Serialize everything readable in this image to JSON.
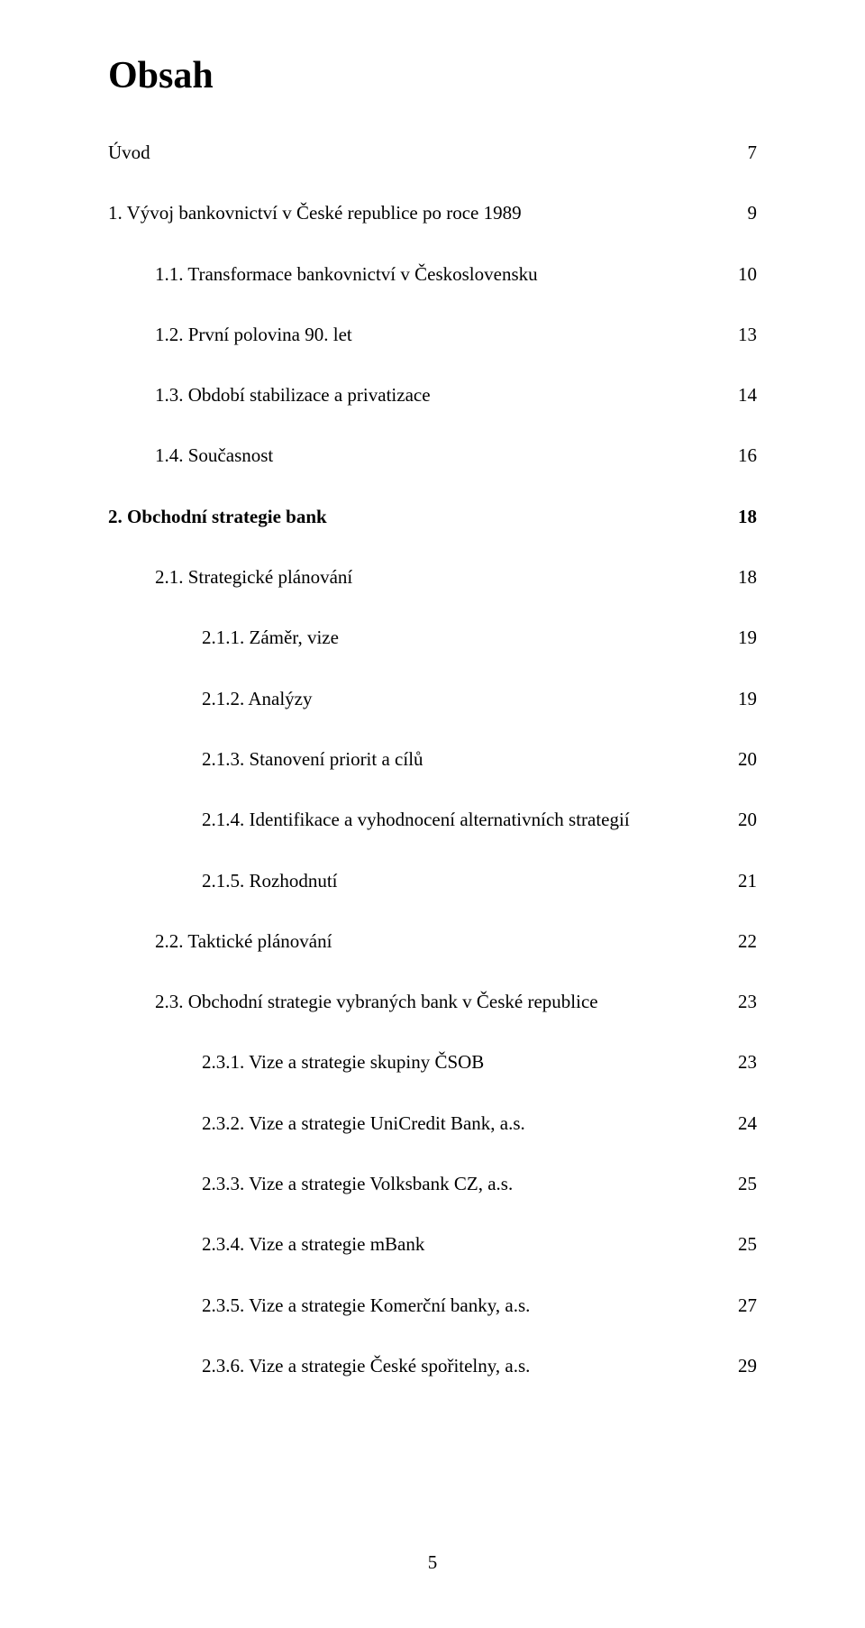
{
  "title": "Obsah",
  "page_number": "5",
  "entries": [
    {
      "lvl": 0,
      "bold": false,
      "label": "Úvod",
      "page": "7"
    },
    {
      "lvl": 0,
      "bold": false,
      "label": "1. Vývoj bankovnictví v České republice po roce 1989",
      "page": "9"
    },
    {
      "lvl": 1,
      "bold": false,
      "label": "1.1.   Transformace bankovnictví v Československu",
      "page": "10"
    },
    {
      "lvl": 1,
      "bold": false,
      "label": "1.2.   První polovina 90. let",
      "page": "13"
    },
    {
      "lvl": 1,
      "bold": false,
      "label": "1.3.   Období stabilizace a privatizace",
      "page": "14"
    },
    {
      "lvl": 1,
      "bold": false,
      "label": "1.4.   Současnost",
      "page": "16"
    },
    {
      "lvl": 0,
      "bold": true,
      "label": "2. Obchodní strategie bank",
      "page": "18"
    },
    {
      "lvl": 1,
      "bold": false,
      "label": "2.1.   Strategické plánování",
      "page": "18"
    },
    {
      "lvl": 2,
      "bold": false,
      "label": "2.1.1.    Záměr, vize",
      "page": "19"
    },
    {
      "lvl": 2,
      "bold": false,
      "label": "2.1.2.    Analýzy",
      "page": "19"
    },
    {
      "lvl": 2,
      "bold": false,
      "label": "2.1.3.    Stanovení priorit a cílů",
      "page": "20"
    },
    {
      "lvl": 2,
      "bold": false,
      "label": "2.1.4.    Identifikace a vyhodnocení alternativních strategií",
      "page": "20"
    },
    {
      "lvl": 2,
      "bold": false,
      "label": "2.1.5.    Rozhodnutí",
      "page": "21"
    },
    {
      "lvl": 1,
      "bold": false,
      "label": "2.2.   Taktické plánování",
      "page": "22"
    },
    {
      "lvl": 1,
      "bold": false,
      "label": "2.3.   Obchodní strategie vybraných bank v České republice",
      "page": "23"
    },
    {
      "lvl": 2,
      "bold": false,
      "label": "2.3.1.    Vize a strategie skupiny ČSOB",
      "page": "23"
    },
    {
      "lvl": 2,
      "bold": false,
      "label": "2.3.2.    Vize a strategie UniCredit Bank, a.s.",
      "page": "24"
    },
    {
      "lvl": 2,
      "bold": false,
      "label": "2.3.3.    Vize a strategie Volksbank CZ, a.s.",
      "page": "25"
    },
    {
      "lvl": 2,
      "bold": false,
      "label": "2.3.4.    Vize a strategie mBank",
      "page": "25"
    },
    {
      "lvl": 2,
      "bold": false,
      "label": "2.3.5.    Vize a strategie Komerční banky, a.s.",
      "page": "27"
    },
    {
      "lvl": 2,
      "bold": false,
      "label": "2.3.6.    Vize a strategie České spořitelny, a.s.",
      "page": "29"
    }
  ]
}
